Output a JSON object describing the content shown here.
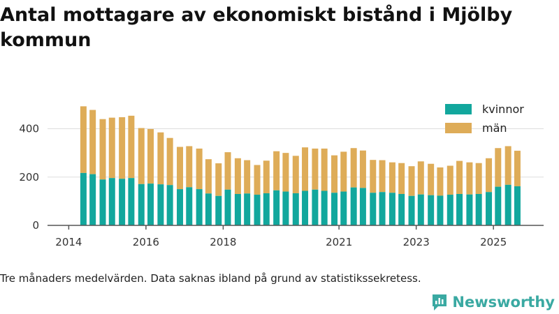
{
  "title": "Antal mottagare av ekonomiskt bistånd i Mjölby kommun",
  "footnote": "Tre månaders medelvärden. Data saknas ibland på grund av statistikssekretess.",
  "brand": "Newsworthy",
  "colors": {
    "kvinnor": "#12a79d",
    "man": "#deac58",
    "grid": "#dddddd",
    "axis": "#555555"
  },
  "chart_data": {
    "type": "bar",
    "stacked": true,
    "x": [
      2014.38,
      2014.62,
      2014.88,
      2015.12,
      2015.38,
      2015.62,
      2015.88,
      2016.12,
      2016.38,
      2016.62,
      2016.88,
      2017.12,
      2017.38,
      2017.62,
      2017.88,
      2018.12,
      2018.38,
      2018.62,
      2018.88,
      2019.12,
      2019.38,
      2019.62,
      2019.88,
      2020.12,
      2020.38,
      2020.62,
      2020.88,
      2021.12,
      2021.38,
      2021.62,
      2021.88,
      2022.12,
      2022.38,
      2022.62,
      2022.88,
      2023.12,
      2023.38,
      2023.62,
      2023.88,
      2024.12,
      2024.38,
      2024.62,
      2024.88,
      2025.12,
      2025.38,
      2025.62
    ],
    "series": [
      {
        "name": "kvinnor",
        "values": [
          217,
          212,
          190,
          196,
          193,
          196,
          171,
          173,
          170,
          167,
          150,
          158,
          150,
          132,
          122,
          148,
          130,
          132,
          127,
          133,
          145,
          140,
          133,
          143,
          148,
          143,
          135,
          140,
          157,
          155,
          135,
          138,
          135,
          130,
          122,
          128,
          125,
          123,
          127,
          130,
          128,
          130,
          138,
          160,
          168,
          162
        ]
      },
      {
        "name": "män",
        "values": [
          276,
          266,
          250,
          250,
          255,
          258,
          232,
          226,
          215,
          195,
          175,
          170,
          168,
          142,
          135,
          155,
          148,
          138,
          123,
          135,
          162,
          160,
          155,
          180,
          170,
          175,
          155,
          165,
          163,
          155,
          136,
          132,
          126,
          128,
          123,
          137,
          130,
          117,
          120,
          137,
          133,
          128,
          140,
          160,
          160,
          147
        ]
      }
    ],
    "xticks": [
      "2014",
      "2016",
      "2018",
      "2021",
      "2023",
      "2025"
    ],
    "xtick_values": [
      2014,
      2016,
      2018,
      2021,
      2023,
      2025
    ],
    "yticks": [
      "0",
      "200",
      "400"
    ],
    "ytick_values": [
      0,
      200,
      400
    ],
    "ylim": [
      0,
      520
    ],
    "xlim": [
      2013.45,
      2026.3
    ],
    "legend": [
      "kvinnor",
      "män"
    ],
    "legend_position": "top-right",
    "xlabel": "",
    "ylabel": ""
  }
}
